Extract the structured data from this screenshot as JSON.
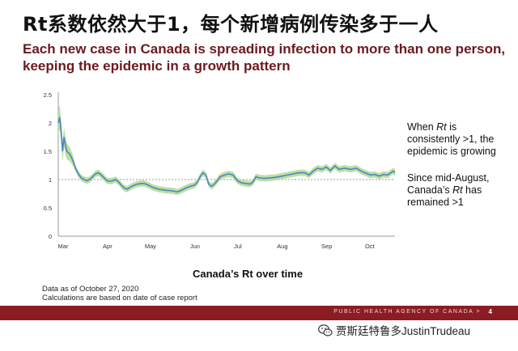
{
  "title": "Rt系数依然大于1，每个新增病例传染多于一人",
  "subtitle": "Each new case in Canada is spreading infection to more than one person, keeping the epidemic in a growth pattern",
  "notes": {
    "note1_parts": [
      "When ",
      "Rt",
      " is consistently >1, the epidemic is growing"
    ],
    "note2_parts": [
      "Since mid-August, Canada’s ",
      "Rt",
      " has remained >1"
    ]
  },
  "chart_caption_parts": [
    "Canada’s ",
    "Rt",
    " over time"
  ],
  "footnotes": [
    "Data as of October 27, 2020",
    "Calculations are based on date of case report"
  ],
  "footer": {
    "agency": "PUBLIC HEALTH AGENCY OF CANADA >",
    "page": "4"
  },
  "watermark": "贾斯廷特鲁多JustinTrudeau",
  "chart_data": {
    "type": "line",
    "ylim": [
      0,
      2.5
    ],
    "yticks": [
      "0",
      "0.5",
      "1",
      "1.5",
      "2",
      "2.5"
    ],
    "x_range": [
      0,
      235
    ],
    "xticks": [
      {
        "label": "Mar",
        "x": 0
      },
      {
        "label": "Apr",
        "x": 31
      },
      {
        "label": "May",
        "x": 61
      },
      {
        "label": "Jun",
        "x": 92
      },
      {
        "label": "Jul",
        "x": 122
      },
      {
        "label": "Aug",
        "x": 153
      },
      {
        "label": "Sep",
        "x": 184
      },
      {
        "label": "Oct",
        "x": 214
      }
    ],
    "reference_line": 1,
    "colors": {
      "line": "#4a86c5",
      "band": "#b9dd9c",
      "ref": "#777777"
    },
    "series": [
      {
        "points": [
          [
            0,
            2.0
          ],
          [
            1,
            2.1
          ],
          [
            2,
            1.85
          ],
          [
            3,
            1.5
          ],
          [
            4,
            1.75
          ],
          [
            5,
            1.6
          ],
          [
            6,
            1.5
          ],
          [
            8,
            1.45
          ],
          [
            10,
            1.35
          ],
          [
            12,
            1.2
          ],
          [
            14,
            1.1
          ],
          [
            16,
            1.03
          ],
          [
            18,
            1.0
          ],
          [
            20,
            0.98
          ],
          [
            22,
            1.0
          ],
          [
            24,
            1.05
          ],
          [
            26,
            1.1
          ],
          [
            28,
            1.12
          ],
          [
            30,
            1.08
          ],
          [
            32,
            1.03
          ],
          [
            34,
            0.98
          ],
          [
            36,
            0.97
          ],
          [
            38,
            0.98
          ],
          [
            40,
            1.0
          ],
          [
            42,
            0.96
          ],
          [
            44,
            0.9
          ],
          [
            46,
            0.85
          ],
          [
            48,
            0.83
          ],
          [
            50,
            0.86
          ],
          [
            52,
            0.89
          ],
          [
            55,
            0.92
          ],
          [
            58,
            0.93
          ],
          [
            60,
            0.93
          ],
          [
            63,
            0.9
          ],
          [
            66,
            0.86
          ],
          [
            70,
            0.83
          ],
          [
            75,
            0.81
          ],
          [
            80,
            0.8
          ],
          [
            83,
            0.78
          ],
          [
            86,
            0.81
          ],
          [
            89,
            0.85
          ],
          [
            92,
            0.88
          ],
          [
            95,
            0.9
          ],
          [
            97,
            0.95
          ],
          [
            99,
            1.05
          ],
          [
            101,
            1.12
          ],
          [
            103,
            1.08
          ],
          [
            105,
            0.92
          ],
          [
            107,
            0.88
          ],
          [
            109,
            0.92
          ],
          [
            111,
            0.98
          ],
          [
            113,
            1.05
          ],
          [
            116,
            1.08
          ],
          [
            119,
            1.1
          ],
          [
            122,
            1.08
          ],
          [
            125,
            0.98
          ],
          [
            128,
            0.94
          ],
          [
            131,
            0.93
          ],
          [
            134,
            0.92
          ],
          [
            136,
            0.96
          ],
          [
            138,
            1.05
          ],
          [
            140,
            1.03
          ],
          [
            144,
            1.02
          ],
          [
            148,
            1.03
          ],
          [
            152,
            1.04
          ],
          [
            156,
            1.06
          ],
          [
            160,
            1.08
          ],
          [
            164,
            1.1
          ],
          [
            168,
            1.12
          ],
          [
            172,
            1.12
          ],
          [
            175,
            1.08
          ],
          [
            178,
            1.15
          ],
          [
            181,
            1.2
          ],
          [
            184,
            1.18
          ],
          [
            187,
            1.22
          ],
          [
            190,
            1.16
          ],
          [
            193,
            1.24
          ],
          [
            196,
            1.18
          ],
          [
            200,
            1.2
          ],
          [
            204,
            1.18
          ],
          [
            208,
            1.2
          ],
          [
            212,
            1.14
          ],
          [
            215,
            1.11
          ],
          [
            218,
            1.08
          ],
          [
            221,
            1.09
          ],
          [
            224,
            1.06
          ],
          [
            227,
            1.09
          ],
          [
            230,
            1.08
          ],
          [
            232,
            1.12
          ],
          [
            234,
            1.15
          ],
          [
            235,
            1.12
          ]
        ]
      }
    ]
  }
}
